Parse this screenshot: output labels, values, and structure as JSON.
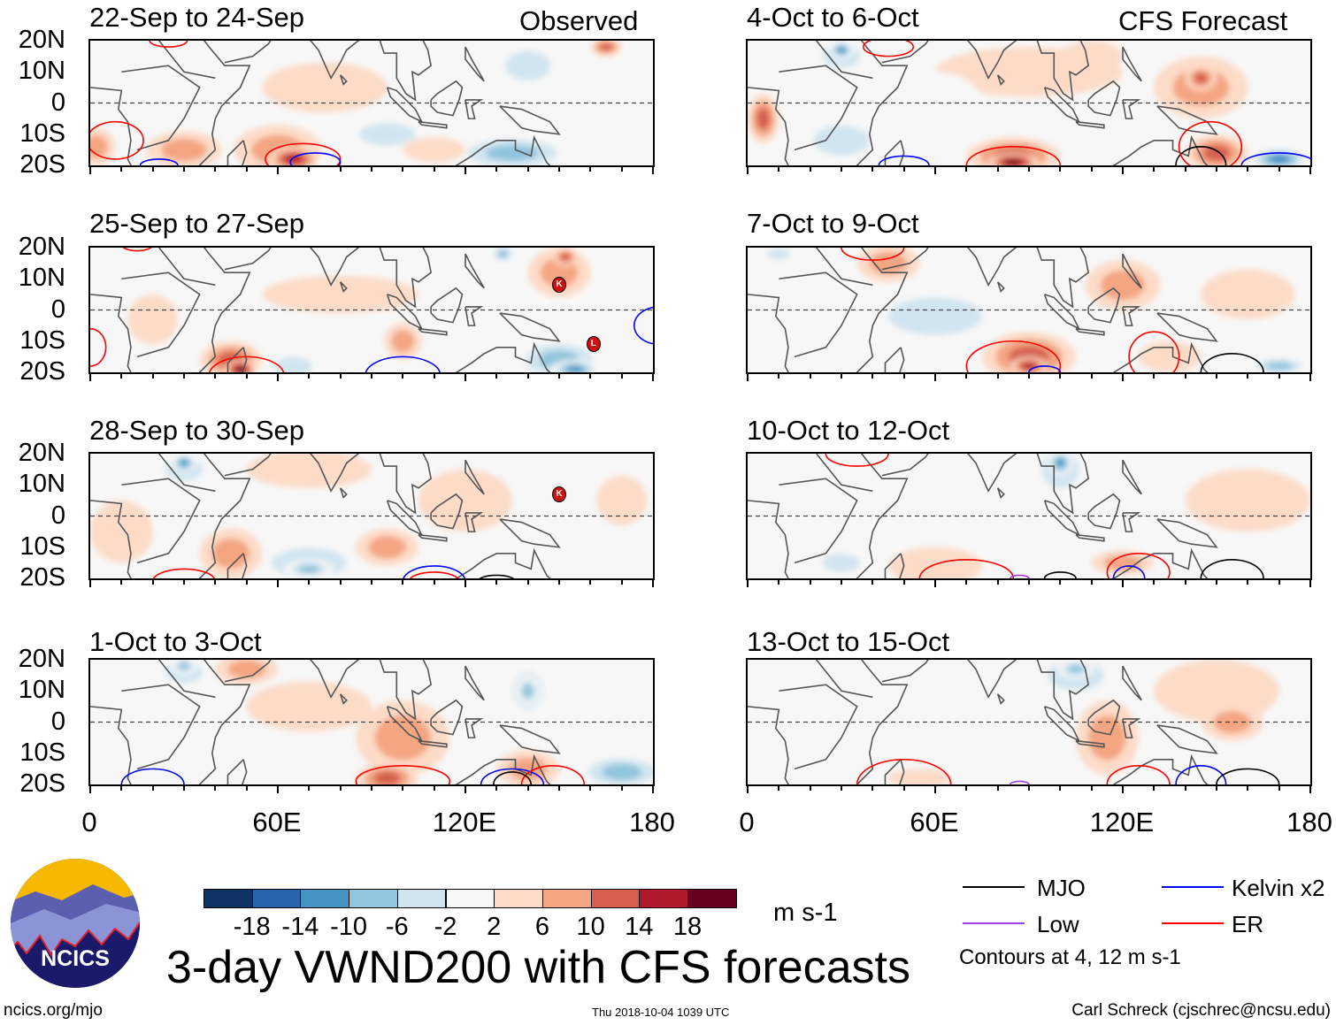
{
  "header": {
    "left_label": "Observed",
    "right_label": "CFS Forecast"
  },
  "axes": {
    "lat_labels": [
      "20N",
      "10N",
      "0",
      "10S",
      "20S"
    ],
    "lon_labels": [
      "0",
      "60E",
      "120E",
      "180"
    ]
  },
  "colorbar": {
    "colors": [
      "#0d3366",
      "#2566ad",
      "#4393c3",
      "#92c5de",
      "#d1e5f0",
      "#f7f7f7",
      "#fddbc7",
      "#f4a582",
      "#d6604d",
      "#b2182b",
      "#67001f"
    ],
    "labels": [
      "-18",
      "-14",
      "-10",
      "-6",
      "-2",
      "2",
      "6",
      "10",
      "14",
      "18"
    ],
    "units": "m s-1"
  },
  "legend": {
    "items": [
      {
        "label": "MJO",
        "color": "#000000"
      },
      {
        "label": "Kelvin x2",
        "color": "#0000ff"
      },
      {
        "label": "Low",
        "color": "#a040e0"
      },
      {
        "label": "ER",
        "color": "#ff0000"
      }
    ],
    "note": "Contours at 4, 12 m s-1"
  },
  "footer": {
    "title": "3-day VWND200 with CFS forecasts",
    "url": "ncics.org/mjo",
    "timestamp": "Thu 2018-10-04 1039 UTC",
    "author": "Carl Schreck (cjschrec@ncsu.edu)",
    "logo_text": "NCICS"
  },
  "chart_data": {
    "type": "heatmap",
    "variable": "200-hPa meridional wind anomaly",
    "units": "m s-1",
    "xlim": [
      0,
      180
    ],
    "ylim": [
      -20,
      20
    ],
    "contour_colors": {
      "mjo": "#000000",
      "kelvin": "#0000ff",
      "low": "#a040e0",
      "er": "#ff0000"
    },
    "panels": [
      {
        "title": "22-Sep to 24-Sep",
        "column": "observed",
        "anomalies": [
          [
            75,
            5,
            20,
            8,
            2
          ],
          [
            15,
            10,
            10,
            8,
            -2
          ],
          [
            140,
            12,
            12,
            8,
            -6
          ],
          [
            165,
            18,
            5,
            3,
            10
          ],
          [
            135,
            -16,
            20,
            6,
            -10
          ],
          [
            95,
            -10,
            15,
            6,
            -6
          ],
          [
            110,
            -15,
            10,
            4,
            2
          ],
          [
            60,
            -15,
            14,
            8,
            6
          ],
          [
            65,
            -18,
            8,
            4,
            14
          ],
          [
            30,
            -15,
            12,
            6,
            6
          ],
          [
            2,
            -14,
            6,
            6,
            6
          ]
        ],
        "contours": [
          [
            8,
            -12,
            9,
            6,
            "er"
          ],
          [
            68,
            -18,
            12,
            5,
            "er"
          ],
          [
            72,
            -19,
            8,
            3,
            "kelvin"
          ],
          [
            22,
            -20,
            6,
            2,
            "kelvin"
          ],
          [
            25,
            20,
            6,
            2,
            "er"
          ]
        ],
        "storms": []
      },
      {
        "title": "25-Sep to 27-Sep",
        "column": "observed",
        "anomalies": [
          [
            80,
            5,
            25,
            6,
            2
          ],
          [
            35,
            5,
            15,
            10,
            -2
          ],
          [
            20,
            -3,
            8,
            8,
            2
          ],
          [
            150,
            12,
            10,
            8,
            6
          ],
          [
            152,
            17,
            4,
            3,
            10
          ],
          [
            135,
            -8,
            15,
            6,
            -2
          ],
          [
            150,
            -16,
            15,
            7,
            -10
          ],
          [
            155,
            -19,
            8,
            3,
            -14
          ],
          [
            65,
            -18,
            10,
            5,
            -6
          ],
          [
            45,
            -16,
            10,
            6,
            10
          ],
          [
            48,
            -19,
            5,
            3,
            18
          ],
          [
            100,
            -10,
            6,
            6,
            6
          ],
          [
            132,
            18,
            4,
            3,
            -10
          ]
        ],
        "contours": [
          [
            50,
            -21,
            12,
            6,
            "er"
          ],
          [
            0,
            -12,
            5,
            6,
            "er"
          ],
          [
            100,
            -21,
            12,
            6,
            "kelvin"
          ],
          [
            182,
            -5,
            8,
            6,
            "kelvin"
          ],
          [
            15,
            21,
            5,
            2,
            "er"
          ]
        ],
        "storms": [
          {
            "label": "K",
            "lon": 150,
            "lat": 8
          },
          {
            "label": "L",
            "lon": 161,
            "lat": -11
          }
        ]
      },
      {
        "title": "28-Sep to 30-Sep",
        "column": "observed",
        "anomalies": [
          [
            70,
            15,
            20,
            6,
            2
          ],
          [
            120,
            5,
            15,
            10,
            2
          ],
          [
            150,
            5,
            15,
            12,
            -2
          ],
          [
            170,
            5,
            8,
            8,
            2
          ],
          [
            30,
            15,
            10,
            6,
            -6
          ],
          [
            30,
            17,
            4,
            3,
            -14
          ],
          [
            70,
            -15,
            20,
            8,
            -6
          ],
          [
            70,
            -17,
            8,
            3,
            -10
          ],
          [
            45,
            -12,
            10,
            8,
            6
          ],
          [
            95,
            -10,
            10,
            6,
            6
          ],
          [
            10,
            -5,
            10,
            10,
            2
          ]
        ],
        "contours": [
          [
            30,
            -21,
            10,
            4,
            "er"
          ],
          [
            110,
            -21,
            10,
            5,
            "kelvin"
          ],
          [
            110,
            -21,
            8,
            3,
            "er"
          ],
          [
            130,
            -21,
            6,
            2,
            "mjo"
          ]
        ],
        "storms": [
          {
            "label": "K",
            "lon": 150,
            "lat": 7
          }
        ]
      },
      {
        "title": "1-Oct to 3-Oct",
        "column": "observed",
        "anomalies": [
          [
            70,
            5,
            20,
            8,
            2
          ],
          [
            30,
            16,
            10,
            6,
            -6
          ],
          [
            30,
            18,
            4,
            3,
            -10
          ],
          [
            50,
            17,
            10,
            5,
            6
          ],
          [
            140,
            10,
            8,
            10,
            -6
          ],
          [
            140,
            10,
            4,
            5,
            -10
          ],
          [
            100,
            -5,
            15,
            12,
            6
          ],
          [
            95,
            -18,
            10,
            5,
            10
          ],
          [
            140,
            -15,
            10,
            6,
            6
          ],
          [
            170,
            -16,
            15,
            6,
            -10
          ],
          [
            10,
            0,
            10,
            10,
            -2
          ]
        ],
        "contours": [
          [
            100,
            -19,
            15,
            5,
            "er"
          ],
          [
            20,
            -20,
            10,
            5,
            "kelvin"
          ],
          [
            135,
            -20,
            10,
            5,
            "kelvin"
          ],
          [
            148,
            -20,
            10,
            6,
            "er"
          ],
          [
            135,
            -20,
            6,
            4,
            "mjo"
          ]
        ],
        "storms": []
      },
      {
        "title": "4-Oct to 6-Oct",
        "column": "forecast",
        "anomalies": [
          [
            90,
            10,
            30,
            8,
            2
          ],
          [
            110,
            15,
            10,
            5,
            2
          ],
          [
            30,
            15,
            10,
            6,
            -6
          ],
          [
            30,
            17,
            4,
            3,
            -14
          ],
          [
            145,
            5,
            15,
            10,
            6
          ],
          [
            145,
            8,
            5,
            4,
            10
          ],
          [
            150,
            -16,
            10,
            6,
            10
          ],
          [
            85,
            -17,
            15,
            6,
            10
          ],
          [
            85,
            -19,
            8,
            3,
            18
          ],
          [
            30,
            -12,
            15,
            8,
            -6
          ],
          [
            5,
            -5,
            5,
            8,
            10
          ],
          [
            170,
            -18,
            10,
            4,
            -14
          ],
          [
            60,
            0,
            15,
            10,
            -2
          ]
        ],
        "contours": [
          [
            85,
            -20,
            15,
            6,
            "er"
          ],
          [
            145,
            -20,
            8,
            6,
            "mjo"
          ],
          [
            148,
            -14,
            10,
            8,
            "er"
          ],
          [
            170,
            -20,
            12,
            4,
            "kelvin"
          ],
          [
            50,
            -20,
            8,
            3,
            "kelvin"
          ],
          [
            45,
            18,
            8,
            3,
            "er"
          ]
        ],
        "storms": []
      },
      {
        "title": "7-Oct to 9-Oct",
        "column": "forecast",
        "anomalies": [
          [
            10,
            18,
            6,
            3,
            -6
          ],
          [
            45,
            15,
            10,
            6,
            6
          ],
          [
            60,
            -2,
            25,
            10,
            -6
          ],
          [
            120,
            8,
            12,
            8,
            6
          ],
          [
            90,
            -15,
            15,
            8,
            10
          ],
          [
            90,
            -18,
            6,
            3,
            14
          ],
          [
            170,
            -18,
            10,
            3,
            -10
          ],
          [
            135,
            -15,
            10,
            5,
            2
          ],
          [
            160,
            5,
            15,
            8,
            2
          ]
        ],
        "contours": [
          [
            85,
            -18,
            15,
            8,
            "er"
          ],
          [
            130,
            -15,
            8,
            8,
            "er"
          ],
          [
            155,
            -20,
            10,
            6,
            "mjo"
          ],
          [
            95,
            -20,
            5,
            2,
            "kelvin"
          ],
          [
            40,
            20,
            10,
            4,
            "er"
          ]
        ],
        "storms": []
      },
      {
        "title": "10-Oct to 12-Oct",
        "column": "forecast",
        "anomalies": [
          [
            160,
            5,
            20,
            10,
            2
          ],
          [
            100,
            15,
            10,
            10,
            -6
          ],
          [
            100,
            17,
            4,
            4,
            -14
          ],
          [
            60,
            -16,
            15,
            6,
            2
          ],
          [
            30,
            -15,
            10,
            5,
            -6
          ],
          [
            120,
            -15,
            10,
            4,
            6
          ],
          [
            165,
            -12,
            10,
            6,
            -2
          ],
          [
            60,
            15,
            10,
            5,
            -2
          ]
        ],
        "contours": [
          [
            70,
            -20,
            15,
            6,
            "er"
          ],
          [
            35,
            20,
            10,
            4,
            "er"
          ],
          [
            125,
            -18,
            10,
            6,
            "er"
          ],
          [
            155,
            -20,
            10,
            6,
            "mjo"
          ],
          [
            100,
            -20,
            5,
            2,
            "mjo"
          ],
          [
            122,
            -20,
            5,
            4,
            "kelvin"
          ],
          [
            87,
            -20,
            3,
            1,
            "low"
          ]
        ],
        "storms": []
      },
      {
        "title": "13-Oct to 15-Oct",
        "column": "forecast",
        "anomalies": [
          [
            150,
            10,
            20,
            10,
            2
          ],
          [
            105,
            15,
            15,
            8,
            -6
          ],
          [
            105,
            17,
            6,
            3,
            -10
          ],
          [
            115,
            -5,
            10,
            12,
            6
          ],
          [
            40,
            -10,
            20,
            8,
            -2
          ],
          [
            150,
            -18,
            15,
            5,
            -2
          ],
          [
            55,
            -18,
            10,
            3,
            2
          ],
          [
            155,
            0,
            10,
            6,
            6
          ]
        ],
        "contours": [
          [
            50,
            -20,
            15,
            8,
            "er"
          ],
          [
            125,
            -20,
            10,
            6,
            "er"
          ],
          [
            145,
            -20,
            8,
            6,
            "kelvin"
          ],
          [
            160,
            -20,
            10,
            5,
            "mjo"
          ],
          [
            87,
            -20,
            3,
            1,
            "low"
          ]
        ],
        "storms": []
      }
    ]
  }
}
